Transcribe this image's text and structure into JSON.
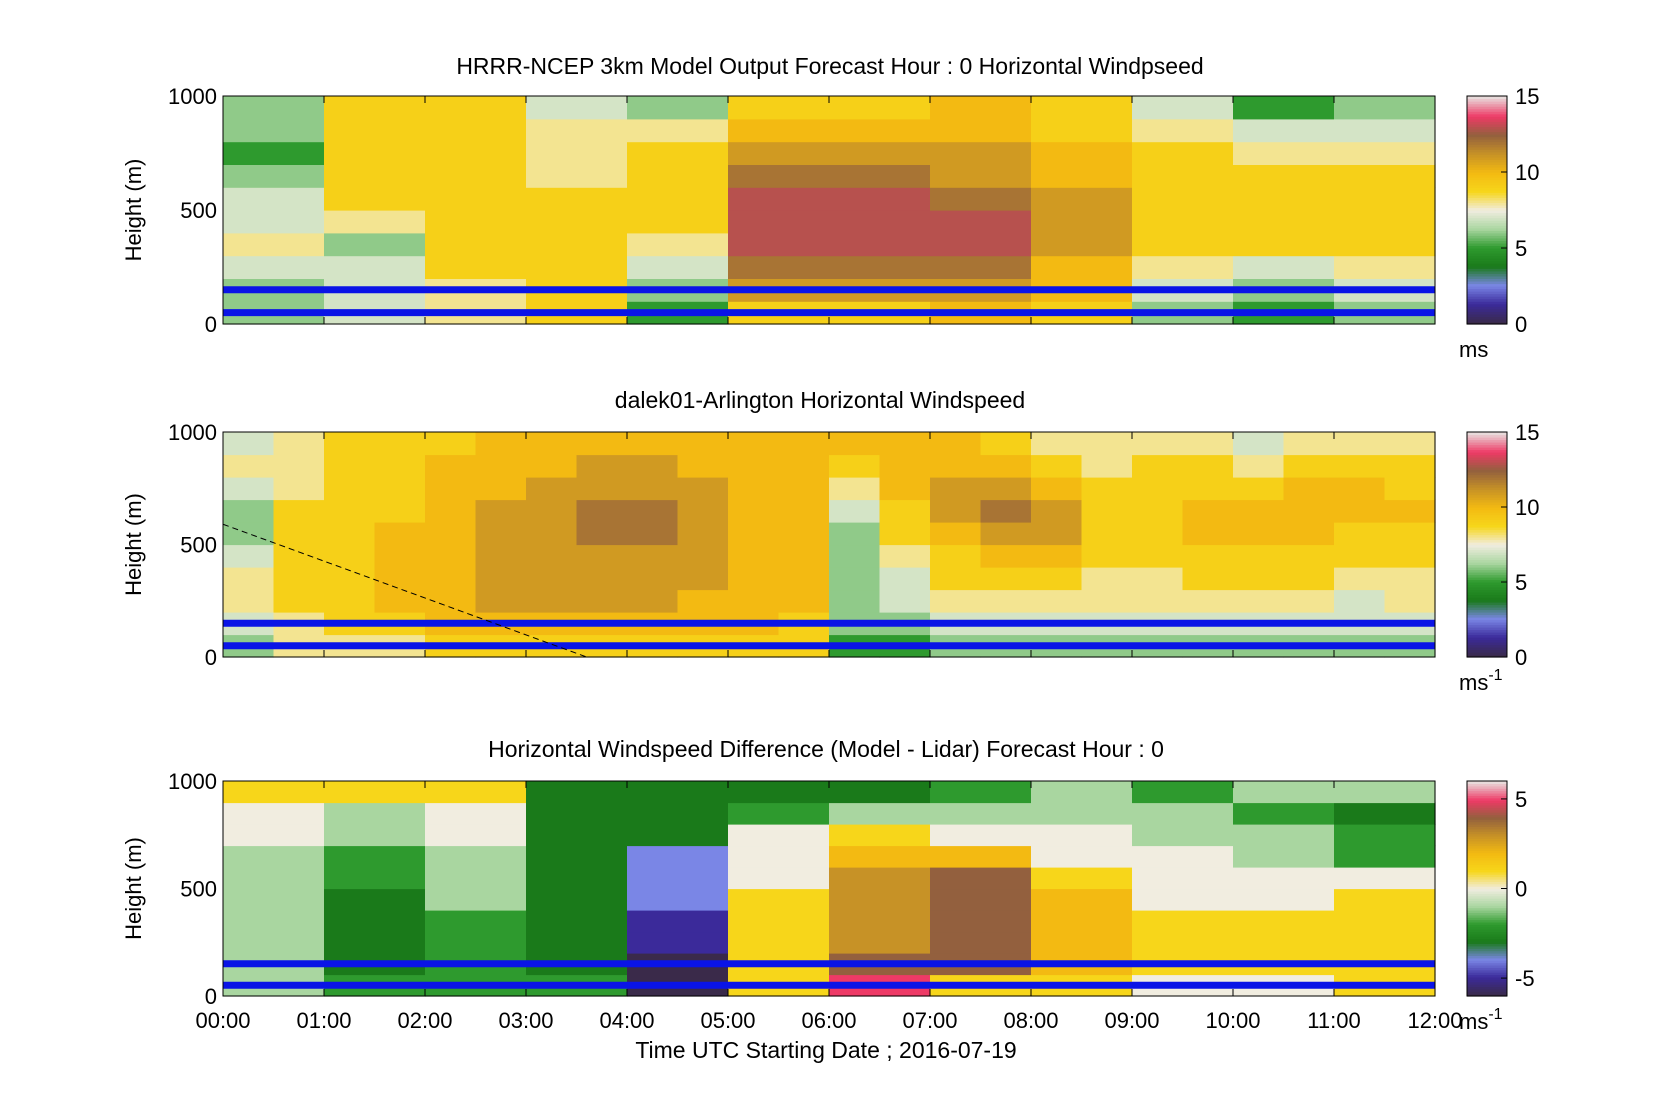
{
  "colors": {
    "line_blue": "#0a14e6",
    "windspeed_colormap": [
      "#3a2a4a",
      "#3b2a9a",
      "#7a86e6",
      "#1a7a1a",
      "#2e9a2e",
      "#a9d6a0",
      "#f1ede0",
      "#f7d61a",
      "#f3ba12",
      "#c79226",
      "#93603e",
      "#ee3a66",
      "#e8dada"
    ],
    "difference_colormap": [
      "#3a2a4a",
      "#3b2a9a",
      "#7a86e6",
      "#1a7a1a",
      "#2e9a2e",
      "#a9d6a0",
      "#f1ede0",
      "#f7d61a",
      "#f3ba12",
      "#c79226",
      "#93603e",
      "#ee3a66",
      "#e8dada"
    ]
  },
  "xaxis": {
    "ticks": [
      "00:00",
      "01:00",
      "02:00",
      "03:00",
      "04:00",
      "05:00",
      "06:00",
      "07:00",
      "08:00",
      "09:00",
      "10:00",
      "11:00",
      "12:00"
    ],
    "label": "Time UTC  Starting Date ; 2016-07-19"
  },
  "chart_data": [
    {
      "type": "heatmap",
      "title": "HRRR-NCEP 3km Model Output   Forecast Hour : 0 Horizontal Windpseed",
      "ylabel": "Height (m)",
      "yticks": [
        "0",
        "500",
        "1000"
      ],
      "ylim": [
        0,
        1000
      ],
      "xlim": [
        "00:00",
        "12:00"
      ],
      "colorbar": {
        "ticks": [
          "0",
          "5",
          "10",
          "15"
        ],
        "range": [
          0,
          15
        ],
        "unit_main": "ms",
        "unit_sup": ""
      },
      "reference_lines_m": [
        50,
        150
      ],
      "x_bins": [
        "00:00",
        "01:00",
        "02:00",
        "03:00",
        "04:00",
        "05:00",
        "06:00",
        "07:00",
        "08:00",
        "09:00",
        "10:00",
        "11:00"
      ],
      "height_bins_m": [
        0,
        100,
        200,
        300,
        400,
        500,
        600,
        700,
        800,
        900
      ],
      "values": [
        [
          6,
          6,
          7,
          8,
          7,
          7,
          6,
          5,
          6,
          6
        ],
        [
          7,
          7,
          7,
          6,
          8,
          9,
          9,
          9,
          9,
          9
        ],
        [
          8,
          8,
          9,
          9,
          9,
          9,
          9,
          9,
          9,
          9
        ],
        [
          9,
          9,
          9,
          9,
          9,
          9,
          8,
          8,
          8,
          7
        ],
        [
          5,
          6,
          7,
          8,
          9,
          9,
          9,
          9,
          8,
          6
        ],
        [
          9,
          11,
          12,
          13,
          13,
          13,
          12,
          11,
          10,
          9
        ],
        [
          9,
          11,
          12,
          13,
          13,
          13,
          12,
          11,
          10,
          9
        ],
        [
          10,
          11,
          12,
          13,
          13,
          12,
          11,
          11,
          10,
          10
        ],
        [
          9,
          10,
          10,
          11,
          11,
          11,
          10,
          10,
          9,
          9
        ],
        [
          6,
          7,
          8,
          9,
          9,
          9,
          9,
          9,
          8,
          7
        ],
        [
          5,
          6,
          7,
          9,
          9,
          9,
          9,
          8,
          7,
          5
        ],
        [
          6,
          7,
          8,
          9,
          9,
          9,
          9,
          8,
          7,
          6
        ]
      ]
    },
    {
      "type": "heatmap",
      "title": "dalek01-Arlington  Horizontal Windspeed",
      "ylabel": "Height (m)",
      "yticks": [
        "0",
        "500",
        "1000"
      ],
      "ylim": [
        0,
        1000
      ],
      "xlim": [
        "00:00",
        "12:00"
      ],
      "colorbar": {
        "ticks": [
          "0",
          "5",
          "10",
          "15"
        ],
        "range": [
          0,
          15
        ],
        "unit_main": "ms",
        "unit_sup": "-1"
      },
      "reference_lines_m": [
        50,
        150
      ],
      "x_bins": [
        "00:00",
        "00:30",
        "01:00",
        "01:30",
        "02:00",
        "02:30",
        "03:00",
        "03:30",
        "04:00",
        "04:30",
        "05:00",
        "05:30",
        "06:00",
        "06:30",
        "07:00",
        "07:30",
        "08:00",
        "08:30",
        "09:00",
        "09:30",
        "10:00",
        "10:30",
        "11:00",
        "11:30"
      ],
      "height_bins_m": [
        0,
        100,
        200,
        300,
        400,
        500,
        600,
        700,
        800,
        900
      ],
      "values": [
        [
          6,
          7,
          8,
          8,
          7,
          6,
          6,
          7,
          8,
          7
        ],
        [
          8,
          8,
          9,
          9,
          9,
          9,
          9,
          8,
          8,
          8
        ],
        [
          8,
          9,
          9,
          9,
          9,
          9,
          9,
          9,
          9,
          9
        ],
        [
          8,
          9,
          10,
          10,
          10,
          10,
          9,
          9,
          9,
          9
        ],
        [
          9,
          10,
          10,
          10,
          10,
          10,
          10,
          10,
          10,
          9
        ],
        [
          9,
          10,
          11,
          11,
          11,
          11,
          11,
          10,
          10,
          10
        ],
        [
          9,
          10,
          11,
          11,
          11,
          11,
          11,
          11,
          10,
          10
        ],
        [
          9,
          10,
          11,
          11,
          11,
          12,
          12,
          11,
          11,
          10
        ],
        [
          9,
          10,
          11,
          11,
          11,
          12,
          12,
          11,
          11,
          10
        ],
        [
          9,
          10,
          10,
          11,
          11,
          11,
          11,
          11,
          10,
          10
        ],
        [
          9,
          10,
          10,
          10,
          10,
          10,
          10,
          10,
          10,
          10
        ],
        [
          9,
          9,
          10,
          10,
          10,
          10,
          10,
          10,
          10,
          10
        ],
        [
          5,
          6,
          6,
          6,
          6,
          6,
          7,
          8,
          9,
          10
        ],
        [
          5,
          6,
          7,
          7,
          8,
          9,
          9,
          10,
          10,
          10
        ],
        [
          6,
          7,
          8,
          9,
          9,
          10,
          11,
          11,
          10,
          10
        ],
        [
          6,
          7,
          8,
          9,
          10,
          11,
          12,
          11,
          10,
          9
        ],
        [
          6,
          7,
          8,
          9,
          10,
          11,
          11,
          10,
          9,
          8
        ],
        [
          6,
          7,
          8,
          8,
          9,
          9,
          9,
          9,
          8,
          8
        ],
        [
          6,
          7,
          8,
          8,
          9,
          9,
          9,
          9,
          9,
          8
        ],
        [
          6,
          7,
          8,
          9,
          9,
          10,
          10,
          9,
          9,
          8
        ],
        [
          6,
          7,
          8,
          9,
          9,
          10,
          10,
          9,
          8,
          7
        ],
        [
          6,
          7,
          8,
          9,
          9,
          10,
          10,
          10,
          9,
          8
        ],
        [
          6,
          7,
          7,
          8,
          9,
          9,
          10,
          10,
          9,
          8
        ],
        [
          6,
          7,
          8,
          8,
          9,
          9,
          10,
          9,
          9,
          8
        ]
      ]
    },
    {
      "type": "heatmap",
      "title": "Horizontal Windspeed Difference (Model - Lidar) Forecast Hour : 0",
      "ylabel": "Height (m)",
      "yticks": [
        "0",
        "500",
        "1000"
      ],
      "ylim": [
        0,
        1000
      ],
      "xlim": [
        "00:00",
        "12:00"
      ],
      "colorbar": {
        "ticks": [
          "-5",
          "0",
          "5"
        ],
        "range": [
          -6,
          6
        ],
        "unit_main": "ms",
        "unit_sup": "-1"
      },
      "reference_lines_m": [
        50,
        150
      ],
      "x_bins": [
        "00:00",
        "01:00",
        "02:00",
        "03:00",
        "04:00",
        "05:00",
        "06:00",
        "07:00",
        "08:00",
        "09:00",
        "10:00",
        "11:00"
      ],
      "height_bins_m": [
        0,
        100,
        200,
        300,
        400,
        500,
        600,
        700,
        800,
        900
      ],
      "values": [
        [
          -1,
          -1,
          -1,
          -1,
          -1,
          -1,
          -1,
          0,
          0,
          1
        ],
        [
          -2,
          -3,
          -3,
          -3,
          -3,
          -2,
          -2,
          -1,
          -1,
          1
        ],
        [
          -2,
          -2,
          -2,
          -2,
          -1,
          -1,
          -1,
          0,
          0,
          1
        ],
        [
          -2,
          -3,
          -3,
          -3,
          -3,
          -3,
          -3,
          -3,
          -3,
          -3
        ],
        [
          -6,
          -6,
          -5,
          -5,
          -4,
          -4,
          -4,
          -3,
          -3,
          -3
        ],
        [
          1,
          1,
          1,
          1,
          1,
          0,
          0,
          0,
          -2,
          -3
        ],
        [
          5,
          4,
          3,
          3,
          3,
          3,
          2,
          1,
          -1,
          -3
        ],
        [
          1,
          4,
          4,
          4,
          4,
          4,
          2,
          0,
          -1,
          -2
        ],
        [
          1,
          2,
          2,
          2,
          2,
          1,
          0,
          0,
          -1,
          -1
        ],
        [
          0,
          1,
          1,
          1,
          0,
          0,
          0,
          -1,
          -1,
          -2
        ],
        [
          0,
          1,
          1,
          1,
          0,
          0,
          -1,
          -1,
          -2,
          -1
        ],
        [
          1,
          1,
          1,
          1,
          1,
          0,
          -2,
          -2,
          -3,
          -1
        ]
      ]
    }
  ]
}
